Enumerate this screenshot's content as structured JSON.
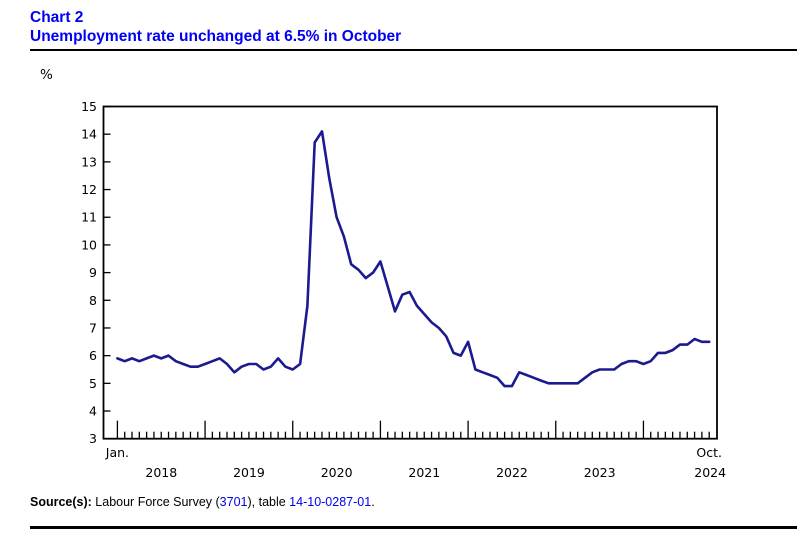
{
  "header": {
    "chart_label": "Chart 2",
    "title": "Unemployment rate unchanged at 6.5% in October"
  },
  "chart_data": {
    "type": "line",
    "title": "Unemployment rate unchanged at 6.5% in October",
    "ylabel": "%",
    "ylim": [
      3,
      15
    ],
    "y_ticks": [
      15,
      14,
      13,
      12,
      11,
      10,
      9,
      8,
      7,
      6,
      5,
      4,
      3
    ],
    "grid": false,
    "legend": "none",
    "line_color": "#1b1b8f",
    "x_axis": {
      "start_month_label": "Jan.",
      "year_labels": [
        "2018",
        "2019",
        "2020",
        "2021",
        "2022",
        "2023"
      ],
      "end_month_label": "Oct.",
      "end_year_label": "2024"
    },
    "series": [
      {
        "name": "Unemployment rate (%)",
        "start": "2018-01",
        "end": "2024-10",
        "frequency": "monthly",
        "values": [
          5.9,
          5.8,
          5.9,
          5.8,
          5.9,
          6.0,
          5.9,
          6.0,
          5.8,
          5.7,
          5.6,
          5.6,
          5.7,
          5.8,
          5.9,
          5.7,
          5.4,
          5.6,
          5.7,
          5.7,
          5.5,
          5.6,
          5.9,
          5.6,
          5.5,
          5.7,
          7.8,
          13.7,
          14.1,
          12.4,
          11.0,
          10.3,
          9.3,
          9.1,
          8.8,
          9.0,
          9.4,
          8.5,
          7.6,
          8.2,
          8.3,
          7.8,
          7.5,
          7.2,
          7.0,
          6.7,
          6.1,
          6.0,
          6.5,
          5.5,
          5.4,
          5.3,
          5.2,
          4.9,
          4.9,
          5.4,
          5.3,
          5.2,
          5.1,
          5.0,
          5.0,
          5.0,
          5.0,
          5.0,
          5.2,
          5.4,
          5.5,
          5.5,
          5.5,
          5.7,
          5.8,
          5.8,
          5.7,
          5.8,
          6.1,
          6.1,
          6.2,
          6.4,
          6.4,
          6.6,
          6.5,
          6.5
        ]
      }
    ]
  },
  "source": {
    "prefix": "Source(s):",
    "text1": " Labour Force Survey (",
    "link1": "3701",
    "text2": "), table ",
    "link2": "14-10-0287-01",
    "text3": "."
  }
}
